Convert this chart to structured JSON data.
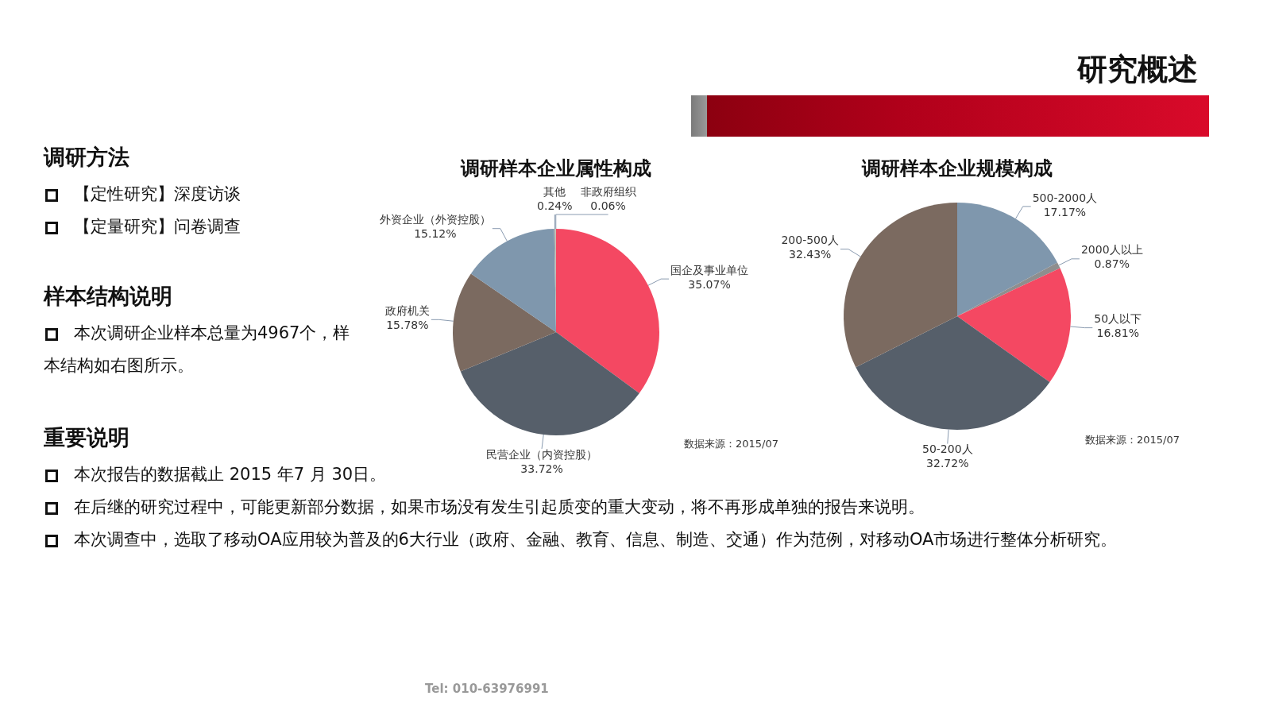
{
  "chart_data": [
    {
      "type": "other",
      "title": "研究概述",
      "annotations": [
        "调研方法",
        "【定性研究】深度访谈",
        "【定量研究】问卷调查",
        "样本结构说明",
        "本次调研企业样本总量为4967个，样本结构如右图所示。",
        "重要说明",
        "本次报告的数据截止 2015 年7 月 30日。",
        "在后继的研究过程中，可能更新部分数据，如果市场没有发生引起质变的重大变动，将不再形成单独的报告来说明。",
        "本次调查中，选取了移动OA应用较为普及的6大行业（政府、金融、教育、信息、制造、交通）作为范例，对移动OA市场进行整体分析研究。",
        "Tel: 010-63976991"
      ]
    },
    {
      "type": "pie",
      "title": "调研样本企业属性构成",
      "categories": [
        "国企及事业单位",
        "民营企业（内资控股）",
        "政府机关",
        "外资企业（外资控股）",
        "其他",
        "非政府组织"
      ],
      "values": [
        35.07,
        33.72,
        15.78,
        15.12,
        0.24,
        0.06
      ],
      "value_labels": [
        "35.07%",
        "33.72%",
        "15.78%",
        "15.12%",
        "0.24%",
        "0.06%"
      ],
      "colors": [
        "#f44862",
        "#565f6a",
        "#7b6a60",
        "#7f97ad",
        "#a5a5a5",
        "#c9b79c"
      ],
      "annotations": [
        "数据来源：2015/07"
      ]
    },
    {
      "type": "pie",
      "title": "调研样本企业规模构成",
      "categories": [
        "500-2000人",
        "2000人以上",
        "50人以下",
        "50-200人",
        "200-500人"
      ],
      "values": [
        17.17,
        0.87,
        16.81,
        32.72,
        32.43
      ],
      "value_labels": [
        "17.17%",
        "0.87%",
        "16.81%",
        "32.72%",
        "32.43%"
      ],
      "colors": [
        "#7f97ad",
        "#8e8e8e",
        "#f44862",
        "#565f6a",
        "#7b6a60"
      ],
      "annotations": [
        "数据来源：2015/07"
      ]
    }
  ]
}
